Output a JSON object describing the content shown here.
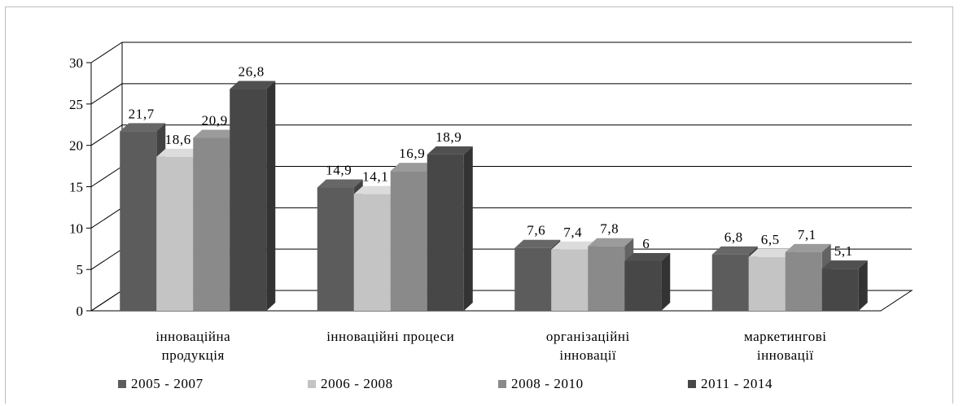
{
  "chart_data": {
    "type": "bar",
    "categories": [
      [
        "інноваційна",
        "продукція"
      ],
      [
        "інноваційні процеси"
      ],
      [
        "організаційні",
        "інновації"
      ],
      [
        "маркетингові",
        "інновації"
      ]
    ],
    "series": [
      {
        "name": "2005 - 2007",
        "values": [
          21.7,
          14.9,
          7.6,
          6.8
        ],
        "labels": [
          "21,7",
          "14,9",
          "7,6",
          "6,8"
        ],
        "color": "#5c5c5c"
      },
      {
        "name": "2006 - 2008",
        "values": [
          18.6,
          14.1,
          7.4,
          6.5
        ],
        "labels": [
          "18,6",
          "14,1",
          "7,4",
          "6,5"
        ],
        "color": "#c4c4c4"
      },
      {
        "name": "2008 - 2010",
        "values": [
          20.9,
          16.9,
          7.8,
          7.1
        ],
        "labels": [
          "20,9",
          "16,9",
          "7,8",
          "7,1"
        ],
        "color": "#8a8a8a"
      },
      {
        "name": "2011 - 2014",
        "values": [
          26.8,
          18.9,
          6,
          5.1
        ],
        "labels": [
          "26,8",
          "18,9",
          "6",
          "5,1"
        ],
        "color": "#474747"
      }
    ],
    "yticks": [
      "0",
      "5",
      "10",
      "15",
      "20",
      "25",
      "30"
    ],
    "ylim": [
      0,
      30
    ],
    "grid": true,
    "legend_position": "bottom",
    "title": "",
    "xlabel": "",
    "ylabel": ""
  }
}
